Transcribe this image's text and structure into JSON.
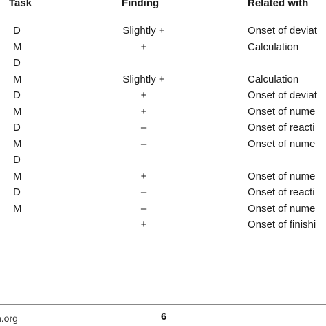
{
  "table": {
    "headers": {
      "task": "Task",
      "finding": "Finding",
      "related": "Related with"
    },
    "rows": [
      {
        "task": "D",
        "finding": "Slightly +",
        "related": "Onset of deviat"
      },
      {
        "task": "M",
        "finding": "+",
        "related": "Calculation"
      },
      {
        "task": "D",
        "finding": "",
        "related": ""
      },
      {
        "task": "M",
        "finding": "Slightly +",
        "related": "Calculation"
      },
      {
        "task": "D",
        "finding": "+",
        "related": "Onset of deviat"
      },
      {
        "task": "M",
        "finding": "+",
        "related": "Onset of nume"
      },
      {
        "task": "D",
        "finding": "–",
        "related": "Onset of reacti"
      },
      {
        "task": "M",
        "finding": "–",
        "related": "Onset of nume"
      },
      {
        "task": "D",
        "finding": "",
        "related": ""
      },
      {
        "task": "M",
        "finding": "+",
        "related": "Onset of nume"
      },
      {
        "task": "D",
        "finding": "–",
        "related": "Onset of reacti"
      },
      {
        "task": "M",
        "finding": "–",
        "related": "Onset of nume"
      },
      {
        "task": "",
        "finding": "+",
        "related": "Onset of finishi"
      }
    ]
  },
  "footer": {
    "left_text": "n.org",
    "page_number": "6"
  }
}
